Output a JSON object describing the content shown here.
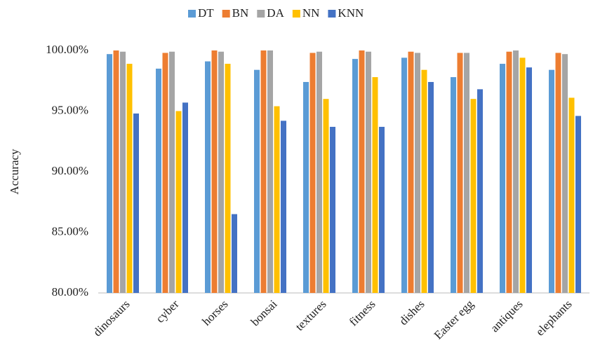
{
  "chart_data": {
    "type": "bar",
    "ylabel": "Accuracy",
    "categories": [
      "dinosaurs",
      "cyber",
      "horses",
      "bonsai",
      "textures",
      "fitness",
      "dishes",
      "Easter egg",
      "antiques",
      "elephants"
    ],
    "series": [
      {
        "name": "DT",
        "color": "#5b9bd5",
        "values": [
          99.7,
          98.5,
          99.1,
          98.4,
          97.4,
          99.3,
          99.4,
          97.8,
          98.9,
          98.4
        ]
      },
      {
        "name": "BN",
        "color": "#ed7d31",
        "values": [
          100,
          99.8,
          100,
          100,
          99.8,
          100,
          99.9,
          99.8,
          99.9,
          99.8
        ]
      },
      {
        "name": "DA",
        "color": "#a5a5a5",
        "values": [
          99.9,
          99.9,
          99.9,
          100,
          99.9,
          99.9,
          99.8,
          99.8,
          100,
          99.7
        ]
      },
      {
        "name": "NN",
        "color": "#ffc000",
        "values": [
          98.9,
          95.0,
          98.9,
          95.4,
          96.0,
          97.8,
          98.4,
          96.0,
          99.4,
          96.1
        ]
      },
      {
        "name": "KNN",
        "color": "#4472c4",
        "values": [
          94.8,
          95.7,
          86.5,
          94.2,
          93.7,
          93.7,
          97.4,
          96.8,
          98.6,
          94.6
        ]
      }
    ],
    "ylim": [
      80,
      100
    ],
    "yticks": [
      {
        "value": 80,
        "label": "80.00%"
      },
      {
        "value": 85,
        "label": "85.00%"
      },
      {
        "value": 90,
        "label": "90.00%"
      },
      {
        "value": 95,
        "label": "95.00%"
      },
      {
        "value": 100,
        "label": "100.00%"
      }
    ],
    "legend": "top"
  }
}
